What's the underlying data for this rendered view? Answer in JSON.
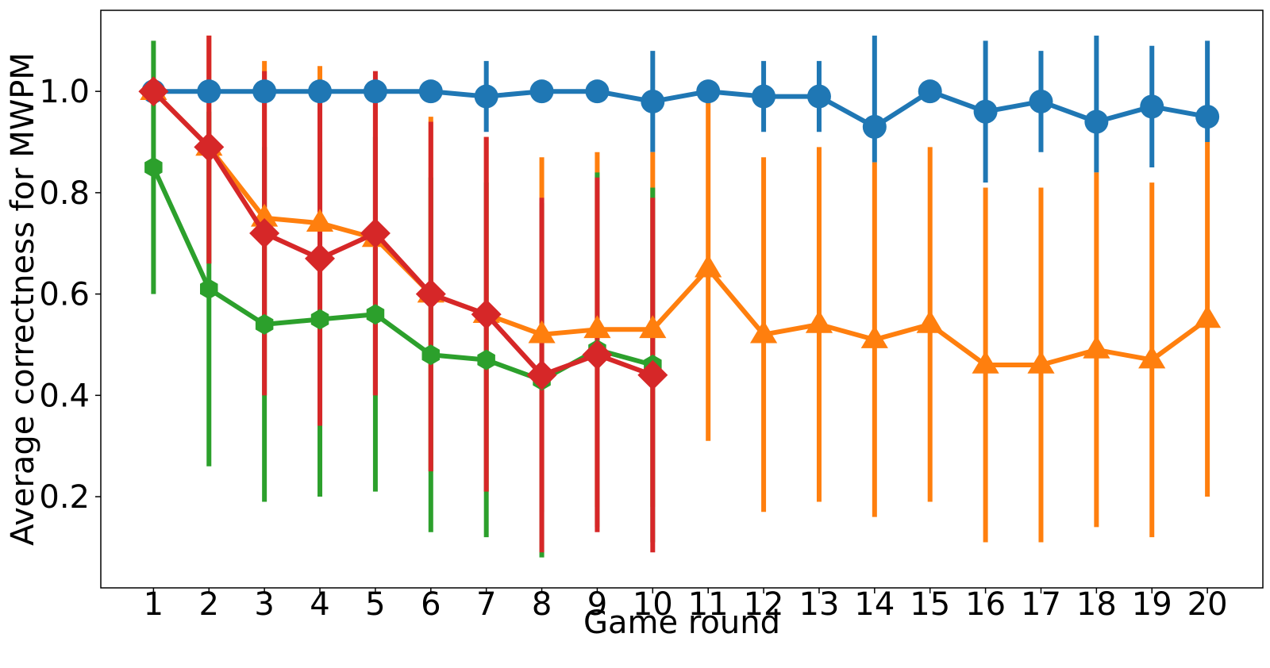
{
  "chart_data": {
    "type": "line",
    "title": "",
    "xlabel": "Game round",
    "ylabel": "Average correctness for MWPM",
    "x_ticks": [
      1,
      2,
      3,
      4,
      5,
      6,
      7,
      8,
      9,
      10,
      11,
      12,
      13,
      14,
      15,
      16,
      17,
      18,
      19,
      20
    ],
    "y_ticks": [
      "0.2",
      "0.4",
      "0.6",
      "0.8",
      "1.0"
    ],
    "xlim": [
      0.05,
      21.0
    ],
    "ylim": [
      0.02,
      1.16
    ],
    "grid": false,
    "legend": "none",
    "series": [
      {
        "color": "#1f77b4",
        "marker": "circle",
        "x": [
          1,
          2,
          3,
          4,
          5,
          6,
          7,
          8,
          9,
          10,
          11,
          12,
          13,
          14,
          15,
          16,
          17,
          18,
          19,
          20
        ],
        "y": [
          1.0,
          1.0,
          1.0,
          1.0,
          1.0,
          1.0,
          0.99,
          1.0,
          1.0,
          0.98,
          1.0,
          0.99,
          0.99,
          0.93,
          1.0,
          0.96,
          0.98,
          0.94,
          0.97,
          0.95
        ],
        "err_low": [
          1.0,
          1.0,
          1.0,
          1.0,
          1.0,
          1.0,
          0.92,
          1.0,
          1.0,
          0.88,
          1.0,
          0.92,
          0.92,
          0.86,
          1.0,
          0.82,
          0.88,
          0.84,
          0.85,
          0.9
        ],
        "err_high": [
          1.0,
          1.0,
          1.0,
          1.0,
          1.0,
          1.0,
          1.06,
          1.0,
          1.0,
          1.08,
          1.0,
          1.06,
          1.06,
          1.11,
          1.0,
          1.1,
          1.08,
          1.11,
          1.09,
          1.1
        ]
      },
      {
        "color": "#ff7f0e",
        "marker": "triangle",
        "x": [
          1,
          2,
          3,
          4,
          5,
          6,
          7,
          8,
          9,
          10,
          11,
          12,
          13,
          14,
          15,
          16,
          17,
          18,
          19,
          20
        ],
        "y": [
          1.0,
          0.89,
          0.75,
          0.74,
          0.71,
          0.6,
          0.56,
          0.52,
          0.53,
          0.53,
          0.65,
          0.52,
          0.54,
          0.51,
          0.54,
          0.46,
          0.46,
          0.49,
          0.47,
          0.55
        ],
        "err_low": [
          1.0,
          0.66,
          0.45,
          0.43,
          0.4,
          0.25,
          0.21,
          0.17,
          0.18,
          0.18,
          0.31,
          0.17,
          0.19,
          0.16,
          0.19,
          0.11,
          0.11,
          0.14,
          0.12,
          0.2
        ],
        "err_high": [
          1.0,
          1.11,
          1.06,
          1.05,
          1.02,
          0.95,
          0.91,
          0.87,
          0.88,
          0.88,
          0.99,
          0.87,
          0.89,
          0.86,
          0.89,
          0.81,
          0.81,
          0.84,
          0.82,
          0.9
        ]
      },
      {
        "color": "#2ca02c",
        "marker": "hexagon",
        "x": [
          1,
          2,
          3,
          4,
          5,
          6,
          7,
          8,
          9,
          10
        ],
        "y": [
          0.85,
          0.61,
          0.54,
          0.55,
          0.56,
          0.48,
          0.47,
          0.43,
          0.49,
          0.46
        ],
        "err_low": [
          0.6,
          0.26,
          0.19,
          0.2,
          0.21,
          0.13,
          0.12,
          0.08,
          0.14,
          0.11
        ],
        "err_high": [
          1.1,
          0.96,
          0.89,
          0.9,
          0.91,
          0.83,
          0.82,
          0.78,
          0.84,
          0.81
        ]
      },
      {
        "color": "#d62728",
        "marker": "diamond",
        "x": [
          1,
          2,
          3,
          4,
          5,
          6,
          7,
          8,
          9,
          10
        ],
        "y": [
          1.0,
          0.89,
          0.72,
          0.67,
          0.72,
          0.6,
          0.56,
          0.44,
          0.48,
          0.44
        ],
        "err_low": [
          1.0,
          0.66,
          0.4,
          0.34,
          0.4,
          0.25,
          0.21,
          0.09,
          0.13,
          0.09
        ],
        "err_high": [
          1.0,
          1.11,
          1.04,
          1.0,
          1.04,
          0.94,
          0.91,
          0.79,
          0.83,
          0.79
        ]
      }
    ]
  }
}
